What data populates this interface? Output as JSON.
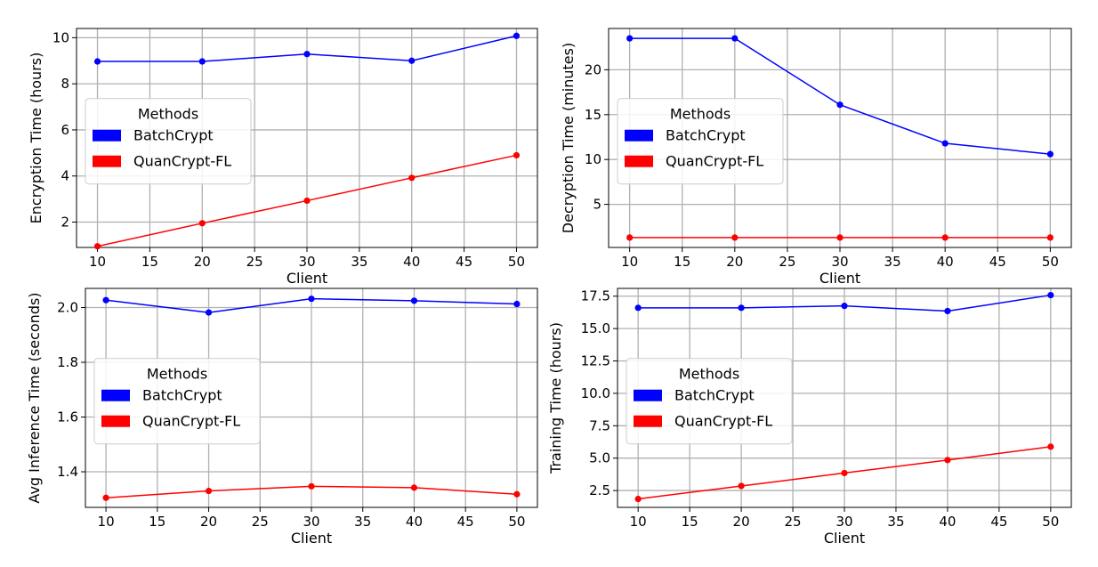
{
  "chart_data": [
    {
      "type": "line",
      "xlabel": "Client",
      "ylabel": "Encryption Time (hours)",
      "x": [
        10,
        20,
        30,
        40,
        50
      ],
      "xlim": [
        8,
        52
      ],
      "ylim": [
        0.9,
        10.4
      ],
      "xticks": [
        10,
        15,
        20,
        25,
        30,
        35,
        40,
        45,
        50
      ],
      "yticks": [
        2,
        4,
        6,
        8,
        10
      ],
      "ytick_labels": [
        "2",
        "4",
        "6",
        "8",
        "10"
      ],
      "grid": true,
      "legend": {
        "title": "Methods",
        "placement": "center-left"
      },
      "series": [
        {
          "name": "BatchCrypt",
          "color": "#0000ff",
          "values": [
            8.97,
            8.97,
            9.29,
            9.0,
            10.08
          ]
        },
        {
          "name": "QuanCrypt-FL",
          "color": "#ff0000",
          "values": [
            0.95,
            1.95,
            2.93,
            3.92,
            4.9
          ]
        }
      ]
    },
    {
      "type": "line",
      "xlabel": "Client",
      "ylabel": "Decryption Time (minutes)",
      "x": [
        10,
        20,
        30,
        40,
        50
      ],
      "xlim": [
        8,
        52
      ],
      "ylim": [
        0.2,
        24.6
      ],
      "xticks": [
        10,
        15,
        20,
        25,
        30,
        35,
        40,
        45,
        50
      ],
      "yticks": [
        5,
        10,
        15,
        20
      ],
      "ytick_labels": [
        "5",
        "10",
        "15",
        "20"
      ],
      "grid": true,
      "legend": {
        "title": "Methods",
        "placement": "center-left"
      },
      "series": [
        {
          "name": "BatchCrypt",
          "color": "#0000ff",
          "values": [
            23.5,
            23.5,
            16.1,
            11.8,
            10.6
          ]
        },
        {
          "name": "QuanCrypt-FL",
          "color": "#ff0000",
          "values": [
            1.3,
            1.3,
            1.3,
            1.3,
            1.3
          ]
        }
      ]
    },
    {
      "type": "line",
      "xlabel": "Client",
      "ylabel": "Avg Inference Time (seconds)",
      "x": [
        10,
        20,
        30,
        40,
        50
      ],
      "xlim": [
        8,
        52
      ],
      "ylim": [
        1.27,
        2.07
      ],
      "xticks": [
        10,
        15,
        20,
        25,
        30,
        35,
        40,
        45,
        50
      ],
      "yticks": [
        1.4,
        1.6,
        1.8,
        2.0
      ],
      "ytick_labels": [
        "1.4",
        "1.6",
        "1.8",
        "2.0"
      ],
      "grid": true,
      "legend": {
        "title": "Methods",
        "placement": "center-left"
      },
      "series": [
        {
          "name": "BatchCrypt",
          "color": "#0000ff",
          "values": [
            2.027,
            1.982,
            2.032,
            2.025,
            2.013
          ]
        },
        {
          "name": "QuanCrypt-FL",
          "color": "#ff0000",
          "values": [
            1.305,
            1.33,
            1.347,
            1.342,
            1.318
          ]
        }
      ]
    },
    {
      "type": "line",
      "xlabel": "Client",
      "ylabel": "Training Time (hours)",
      "x": [
        10,
        20,
        30,
        40,
        50
      ],
      "xlim": [
        8,
        52
      ],
      "ylim": [
        1.2,
        18.1
      ],
      "xticks": [
        10,
        15,
        20,
        25,
        30,
        35,
        40,
        45,
        50
      ],
      "yticks": [
        2.5,
        5.0,
        7.5,
        10.0,
        12.5,
        15.0,
        17.5
      ],
      "ytick_labels": [
        "2.5",
        "5.0",
        "7.5",
        "10.0",
        "12.5",
        "15.0",
        "17.5"
      ],
      "grid": true,
      "legend": {
        "title": "Methods",
        "placement": "center-left"
      },
      "series": [
        {
          "name": "BatchCrypt",
          "color": "#0000ff",
          "values": [
            16.6,
            16.6,
            16.75,
            16.35,
            17.58
          ]
        },
        {
          "name": "QuanCrypt-FL",
          "color": "#ff0000",
          "values": [
            1.85,
            2.85,
            3.85,
            4.85,
            5.88
          ]
        }
      ]
    }
  ]
}
